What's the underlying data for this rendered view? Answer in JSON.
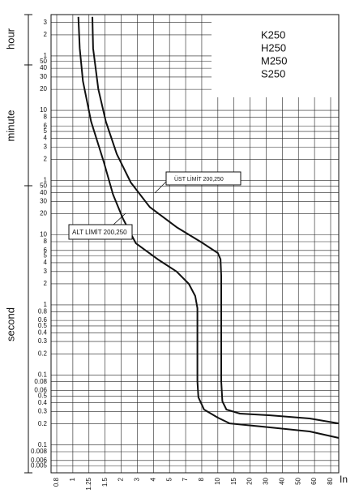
{
  "chart_data": {
    "type": "line",
    "xscale": "log",
    "yscale": "log",
    "grid": true,
    "x_label": "In",
    "y_group_labels": [
      "hour",
      "minute",
      "second"
    ],
    "models": [
      "K250",
      "H250",
      "M250",
      "S250"
    ],
    "xlim": [
      0.7,
      95
    ],
    "xticks": [
      0.8,
      1,
      1.25,
      1.5,
      2,
      3,
      4,
      5,
      7,
      8,
      10,
      15,
      20,
      30,
      40,
      50,
      60,
      80
    ],
    "ylim": [
      0.004,
      14000
    ],
    "yticks": [
      {
        "value": 10800,
        "label": "3"
      },
      {
        "value": 7200,
        "label": "2"
      },
      {
        "value": 3600,
        "label": "1"
      },
      {
        "value": 3000,
        "label": "50"
      },
      {
        "value": 2400,
        "label": "40"
      },
      {
        "value": 1800,
        "label": "30"
      },
      {
        "value": 1200,
        "label": "20"
      },
      {
        "value": 600,
        "label": "10"
      },
      {
        "value": 480,
        "label": "8"
      },
      {
        "value": 360,
        "label": "6"
      },
      {
        "value": 300,
        "label": "5"
      },
      {
        "value": 240,
        "label": "4"
      },
      {
        "value": 180,
        "label": "3"
      },
      {
        "value": 120,
        "label": "2"
      },
      {
        "value": 60,
        "label": "1"
      },
      50,
      40,
      30,
      20,
      10,
      8,
      6,
      5,
      4,
      3,
      2,
      1,
      0.8,
      0.6,
      0.5,
      0.4,
      0.3,
      0.2,
      0.1,
      0.08,
      0.06,
      {
        "value": 0.05,
        "label": "0.5"
      },
      {
        "value": 0.04,
        "label": "0.4"
      },
      {
        "value": 0.03,
        "label": "0.3"
      },
      {
        "value": 0.02,
        "label": "0.2"
      },
      {
        "value": 0.01,
        "label": "0.1"
      },
      0.008,
      0.006,
      0.005
    ],
    "series": [
      {
        "name": "ALT LİMİT 200,250",
        "color": "#111111",
        "x": [
          1.08,
          1.1,
          1.15,
          1.28,
          1.48,
          1.73,
          2.1,
          2.89,
          4.24,
          5.8,
          7.19,
          7.58,
          7.72,
          7.72,
          7.78,
          8.26,
          10,
          13.5,
          27,
          56.8,
          95
        ],
        "values": [
          13000,
          4600,
          1580,
          416,
          109,
          37.7,
          16.9,
          7.6,
          4.5,
          3.0,
          2.0,
          1.34,
          0.9,
          0.081,
          0.048,
          0.032,
          0.0245,
          0.0203,
          0.0183,
          0.0156,
          0.0126
        ]
      },
      {
        "name": "ÜST LİMİT 200,250",
        "color": "#111111",
        "x": [
          1.3,
          1.31,
          1.39,
          1.52,
          1.85,
          2.55,
          3.75,
          5.8,
          8.13,
          10,
          10.7,
          10.9,
          10.9,
          11.2,
          12.4,
          16.7,
          32.2,
          56.8,
          95
        ],
        "values": [
          13000,
          4600,
          1210,
          416,
          143,
          56,
          25,
          12.9,
          7.6,
          5.5,
          4.5,
          2.6,
          0.081,
          0.042,
          0.032,
          0.028,
          0.0265,
          0.0239,
          0.0203
        ]
      }
    ]
  }
}
